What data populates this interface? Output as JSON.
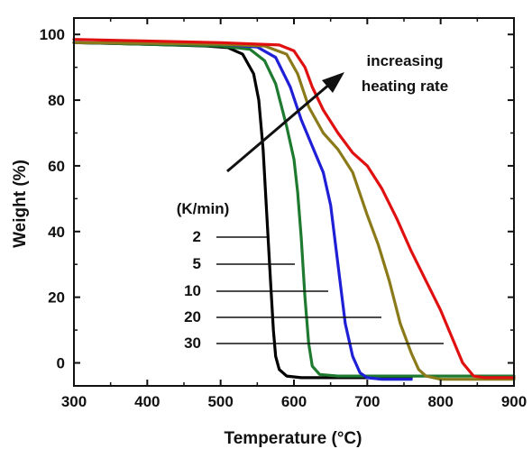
{
  "chart_data": {
    "type": "line",
    "xlabel": "Temperature (°C)",
    "ylabel": "Weight (%)",
    "xlim": [
      300,
      900
    ],
    "ylim": [
      -7,
      105
    ],
    "xticks": [
      300,
      400,
      500,
      600,
      700,
      800,
      900
    ],
    "yticks": [
      0,
      20,
      40,
      60,
      80,
      100
    ],
    "grid": false,
    "legend": {
      "title": "(K/min)",
      "entries": [
        "2",
        "5",
        "10",
        "20",
        "30"
      ]
    },
    "annotation": {
      "line1": "increasing",
      "line2": "heating rate"
    },
    "series": [
      {
        "name": "2",
        "color": "#000000",
        "x": [
          300,
          400,
          480,
          510,
          530,
          545,
          552,
          558,
          563,
          568,
          572,
          575,
          580,
          590,
          610,
          650,
          700,
          760
        ],
        "y": [
          97.5,
          97,
          96.5,
          96,
          94,
          88,
          80,
          65,
          45,
          25,
          10,
          2,
          -2,
          -4,
          -4.5,
          -4.5,
          -4.5,
          -4.5
        ]
      },
      {
        "name": "5",
        "color": "#1e7a2e",
        "x": [
          300,
          400,
          500,
          540,
          560,
          575,
          590,
          600,
          605,
          610,
          615,
          620,
          625,
          635,
          660,
          700,
          800,
          900
        ],
        "y": [
          97.5,
          97,
          96.5,
          95.5,
          92,
          85,
          72,
          62,
          52,
          38,
          20,
          6,
          -1,
          -3.5,
          -4,
          -4,
          -4,
          -4
        ]
      },
      {
        "name": "10",
        "color": "#1f1fd6",
        "x": [
          300,
          400,
          500,
          550,
          575,
          595,
          610,
          625,
          640,
          650,
          660,
          670,
          680,
          690,
          700,
          720,
          760
        ],
        "y": [
          97.5,
          97.3,
          97,
          96.2,
          93,
          84,
          74,
          66,
          58,
          48,
          30,
          12,
          2,
          -3,
          -4.5,
          -5,
          -5
        ]
      },
      {
        "name": "20",
        "color": "#8a7a1a",
        "x": [
          300,
          400,
          500,
          560,
          590,
          605,
          620,
          640,
          660,
          680,
          700,
          715,
          730,
          745,
          760,
          770,
          780,
          800,
          900
        ],
        "y": [
          97.5,
          97.3,
          97,
          96.5,
          94,
          88,
          78,
          70,
          65,
          58,
          45,
          36,
          25,
          12,
          3,
          -2,
          -4,
          -5,
          -5
        ]
      },
      {
        "name": "30",
        "color": "#e01010",
        "x": [
          300,
          400,
          500,
          580,
          600,
          615,
          625,
          640,
          660,
          680,
          700,
          720,
          740,
          760,
          780,
          800,
          815,
          830,
          845,
          860,
          900
        ],
        "y": [
          98.5,
          98,
          97.5,
          96.8,
          95,
          90,
          84,
          77,
          70,
          64,
          60,
          53,
          44,
          34,
          25,
          16,
          8,
          0,
          -4,
          -4.5,
          -4.5
        ]
      }
    ]
  }
}
